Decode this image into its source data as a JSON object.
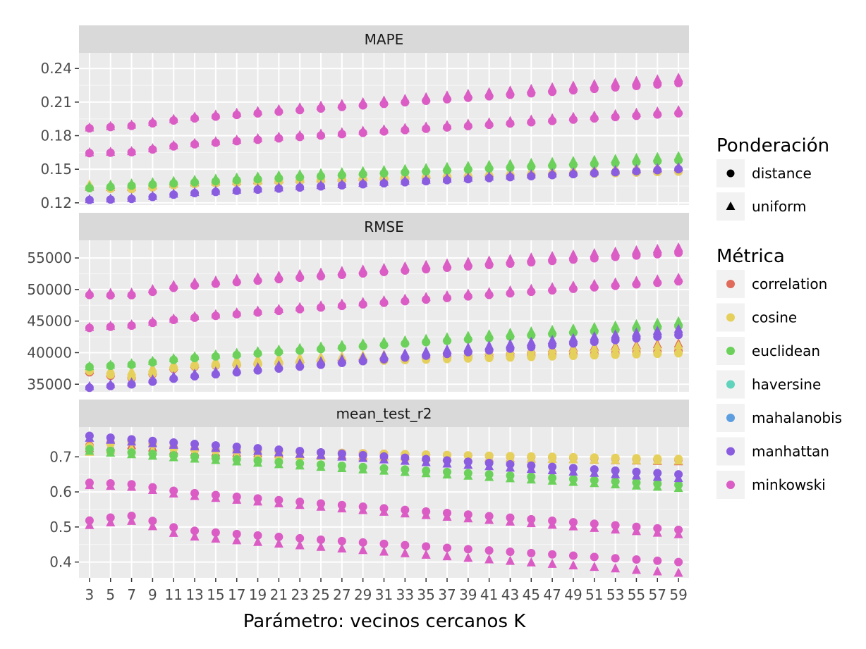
{
  "chart_data": {
    "type": "scatter",
    "xlabel": "Parámetro: vecinos cercanos K",
    "x": [
      3,
      5,
      7,
      9,
      11,
      13,
      15,
      17,
      19,
      21,
      23,
      25,
      27,
      29,
      31,
      33,
      35,
      37,
      39,
      41,
      43,
      45,
      47,
      49,
      51,
      53,
      55,
      57,
      59
    ],
    "legend": {
      "placement": "right",
      "shape_title": "Ponderación",
      "shapes": [
        {
          "name": "distance",
          "shape": "circle"
        },
        {
          "name": "uniform",
          "shape": "triangle"
        }
      ],
      "color_title": "Métrica",
      "colors": [
        {
          "name": "correlation",
          "color": "#E06B5A"
        },
        {
          "name": "cosine",
          "color": "#E6D05C"
        },
        {
          "name": "euclidean",
          "color": "#6BD15B"
        },
        {
          "name": "haversine",
          "color": "#5FD3BC"
        },
        {
          "name": "mahalanobis",
          "color": "#5C9EE0"
        },
        {
          "name": "manhattan",
          "color": "#8A5CE0"
        },
        {
          "name": "minkowski",
          "color": "#DA5CC4"
        }
      ]
    },
    "facets": [
      {
        "name": "MAPE",
        "ylim": [
          0.118,
          0.254
        ],
        "yticks": [
          0.12,
          0.15,
          0.18,
          0.21,
          0.24
        ],
        "tick_labels": [
          "0.12",
          "0.15",
          "0.18",
          "0.21",
          "0.24"
        ],
        "series": [
          {
            "metric": "correlation",
            "weight": "distance",
            "start": 0.134,
            "end": 0.148,
            "dip": 0.003
          },
          {
            "metric": "correlation",
            "weight": "uniform",
            "start": 0.135,
            "end": 0.152,
            "dip": 0.002
          },
          {
            "metric": "cosine",
            "weight": "distance",
            "start": 0.134,
            "end": 0.148,
            "dip": 0.003
          },
          {
            "metric": "cosine",
            "weight": "uniform",
            "start": 0.137,
            "end": 0.153,
            "dip": 0.002
          },
          {
            "metric": "euclidean",
            "weight": "distance",
            "start": 0.133,
            "end": 0.158,
            "dip": 0.0
          },
          {
            "metric": "euclidean",
            "weight": "uniform",
            "start": 0.135,
            "end": 0.162,
            "dip": 0.0
          },
          {
            "metric": "manhattan",
            "weight": "distance",
            "start": 0.123,
            "end": 0.15,
            "dip": 0.002
          },
          {
            "metric": "manhattan",
            "weight": "uniform",
            "start": 0.124,
            "end": 0.152,
            "dip": 0.002
          },
          {
            "metric": "minkowski",
            "weight": "distance",
            "start": 0.165,
            "end": 0.2,
            "dip": 0.003
          },
          {
            "metric": "minkowski",
            "weight": "uniform",
            "start": 0.166,
            "end": 0.203,
            "dip": 0.003
          },
          {
            "metric": "minkowski",
            "weight": "distance",
            "start": 0.187,
            "end": 0.227,
            "dip": 0.002
          },
          {
            "metric": "minkowski",
            "weight": "uniform",
            "start": 0.188,
            "end": 0.232,
            "dip": 0.002
          }
        ]
      },
      {
        "name": "RMSE",
        "ylim": [
          33800,
          57800
        ],
        "yticks": [
          35000,
          40000,
          45000,
          50000,
          55000
        ],
        "tick_labels": [
          "35000",
          "40000",
          "45000",
          "50000",
          "55000"
        ],
        "series": [
          {
            "metric": "correlation",
            "weight": "distance",
            "start": 37200,
            "end": 40200,
            "dip": 1500
          },
          {
            "metric": "correlation",
            "weight": "uniform",
            "start": 37500,
            "end": 41500,
            "dip": 1200
          },
          {
            "metric": "cosine",
            "weight": "distance",
            "start": 37400,
            "end": 39900,
            "dip": 1500
          },
          {
            "metric": "cosine",
            "weight": "uniform",
            "start": 38000,
            "end": 41200,
            "dip": 1200
          },
          {
            "metric": "euclidean",
            "weight": "distance",
            "start": 37800,
            "end": 44200,
            "dip": 300
          },
          {
            "metric": "euclidean",
            "weight": "uniform",
            "start": 38000,
            "end": 45000,
            "dip": 300
          },
          {
            "metric": "manhattan",
            "weight": "distance",
            "start": 34500,
            "end": 42800,
            "dip": 300
          },
          {
            "metric": "manhattan",
            "weight": "uniform",
            "start": 34800,
            "end": 43800,
            "dip": 300
          },
          {
            "metric": "minkowski",
            "weight": "distance",
            "start": 44000,
            "end": 51300,
            "dip": 400
          },
          {
            "metric": "minkowski",
            "weight": "uniform",
            "start": 44200,
            "end": 51900,
            "dip": 400
          },
          {
            "metric": "minkowski",
            "weight": "distance",
            "start": 49300,
            "end": 55800,
            "dip": 800
          },
          {
            "metric": "minkowski",
            "weight": "uniform",
            "start": 49700,
            "end": 56700,
            "dip": 800
          }
        ]
      },
      {
        "name": "mean_test_r2",
        "ylim": [
          0.355,
          0.785
        ],
        "yticks": [
          0.4,
          0.5,
          0.6,
          0.7
        ],
        "tick_labels": [
          "0.4",
          "0.5",
          "0.6",
          "0.7"
        ],
        "series": [
          {
            "metric": "correlation",
            "weight": "distance",
            "start": 0.728,
            "end": 0.692,
            "dip": -0.02
          },
          {
            "metric": "correlation",
            "weight": "uniform",
            "start": 0.722,
            "end": 0.688,
            "dip": -0.015
          },
          {
            "metric": "cosine",
            "weight": "distance",
            "start": 0.725,
            "end": 0.694,
            "dip": -0.02
          },
          {
            "metric": "cosine",
            "weight": "uniform",
            "start": 0.712,
            "end": 0.69,
            "dip": -0.015
          },
          {
            "metric": "euclidean",
            "weight": "distance",
            "start": 0.722,
            "end": 0.62,
            "dip": 0.0
          },
          {
            "metric": "euclidean",
            "weight": "uniform",
            "start": 0.718,
            "end": 0.612,
            "dip": 0.0
          },
          {
            "metric": "manhattan",
            "weight": "distance",
            "start": 0.76,
            "end": 0.65,
            "dip": 0.0
          },
          {
            "metric": "manhattan",
            "weight": "uniform",
            "start": 0.755,
            "end": 0.64,
            "dip": 0.0
          },
          {
            "metric": "minkowski",
            "weight": "distance",
            "start": 0.624,
            "end": 0.492,
            "dip": -0.01
          },
          {
            "metric": "minkowski",
            "weight": "uniform",
            "start": 0.618,
            "end": 0.48,
            "dip": -0.01
          },
          {
            "metric": "minkowski",
            "weight": "distance",
            "start": 0.512,
            "end": 0.4,
            "dip": -0.03
          },
          {
            "metric": "minkowski",
            "weight": "uniform",
            "start": 0.5,
            "end": 0.37,
            "dip": -0.03
          }
        ]
      }
    ]
  }
}
